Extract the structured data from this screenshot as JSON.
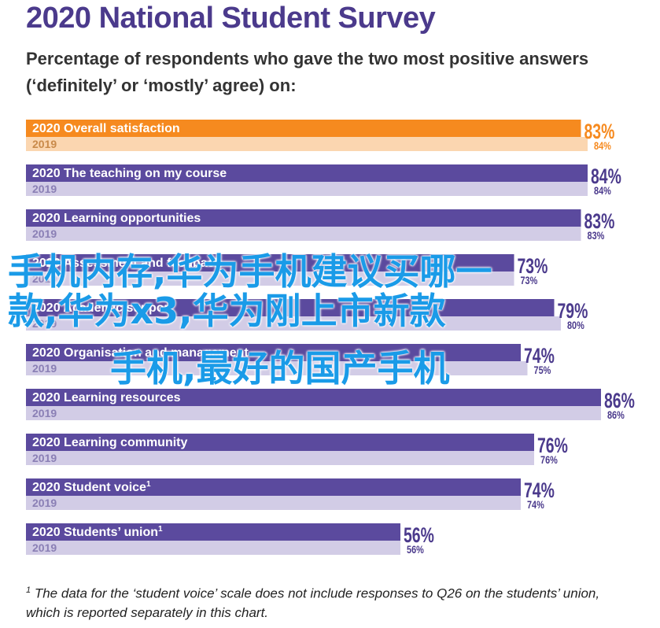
{
  "header": {
    "title": "2020 National Student Survey",
    "subtitle": "Percentage of respondents who gave the two most positive answers (‘definitely’ or ‘mostly’ agree) on:"
  },
  "chart_data": {
    "type": "bar",
    "orientation": "horizontal",
    "xlim": [
      0,
      100
    ],
    "colors": {
      "highlight_2020": "#f68a1f",
      "highlight_2019": "#fbd6b0",
      "main_2020": "#5b4a9e",
      "main_2019": "#d2cce6",
      "value_text": "#4b3a8c",
      "highlight_value_text": "#f68a1f"
    },
    "rows": [
      {
        "category": "Overall satisfaction",
        "year_2020": "2020",
        "year_2019": "2019",
        "value_2020": 83,
        "value_2019": 84,
        "label_2020": "83%",
        "label_2019": "84%",
        "highlight": true
      },
      {
        "category": "The teaching on my course",
        "year_2020": "2020",
        "year_2019": "2019",
        "value_2020": 84,
        "value_2019": 84,
        "label_2020": "84%",
        "label_2019": "84%",
        "highlight": false
      },
      {
        "category": "Learning opportunities",
        "year_2020": "2020",
        "year_2019": "2019",
        "value_2020": 83,
        "value_2019": 83,
        "label_2020": "83%",
        "label_2019": "83%",
        "highlight": false
      },
      {
        "category": "Assessment and feedback",
        "year_2020": "2020",
        "year_2019": "2019",
        "value_2020": 73,
        "value_2019": 73,
        "label_2020": "73%",
        "label_2019": "73%",
        "highlight": false
      },
      {
        "category": "Academic support",
        "year_2020": "2020",
        "year_2019": "2019",
        "value_2020": 79,
        "value_2019": 80,
        "label_2020": "79%",
        "label_2019": "80%",
        "highlight": false
      },
      {
        "category": "Organisation and management",
        "year_2020": "2020",
        "year_2019": "2019",
        "value_2020": 74,
        "value_2019": 75,
        "label_2020": "74%",
        "label_2019": "75%",
        "highlight": false
      },
      {
        "category": "Learning resources",
        "year_2020": "2020",
        "year_2019": "2019",
        "value_2020": 86,
        "value_2019": 86,
        "label_2020": "86%",
        "label_2019": "86%",
        "highlight": false
      },
      {
        "category": "Learning community",
        "year_2020": "2020",
        "year_2019": "2019",
        "value_2020": 76,
        "value_2019": 76,
        "label_2020": "76%",
        "label_2019": "76%",
        "highlight": false
      },
      {
        "category": "Student voice",
        "footnote_mark": "1",
        "year_2020": "2020",
        "year_2019": "2019",
        "value_2020": 74,
        "value_2019": 74,
        "label_2020": "74%",
        "label_2019": "74%",
        "highlight": false
      },
      {
        "category": "Students’ union",
        "footnote_mark": "1",
        "year_2020": "2020",
        "year_2019": "2019",
        "value_2020": 56,
        "value_2019": 56,
        "label_2020": "56%",
        "label_2019": "56%",
        "highlight": false
      }
    ]
  },
  "footnote": {
    "mark": "1",
    "text": " The data for the ‘student voice’ scale does not include responses to Q26 on the students’ union, which is reported separately in this chart."
  },
  "overlay": {
    "line1": "手机内存,华为手机建议买哪一",
    "line2": "款,华为x3,华为刚上市新款",
    "line3": "手机,最好的国产手机"
  }
}
